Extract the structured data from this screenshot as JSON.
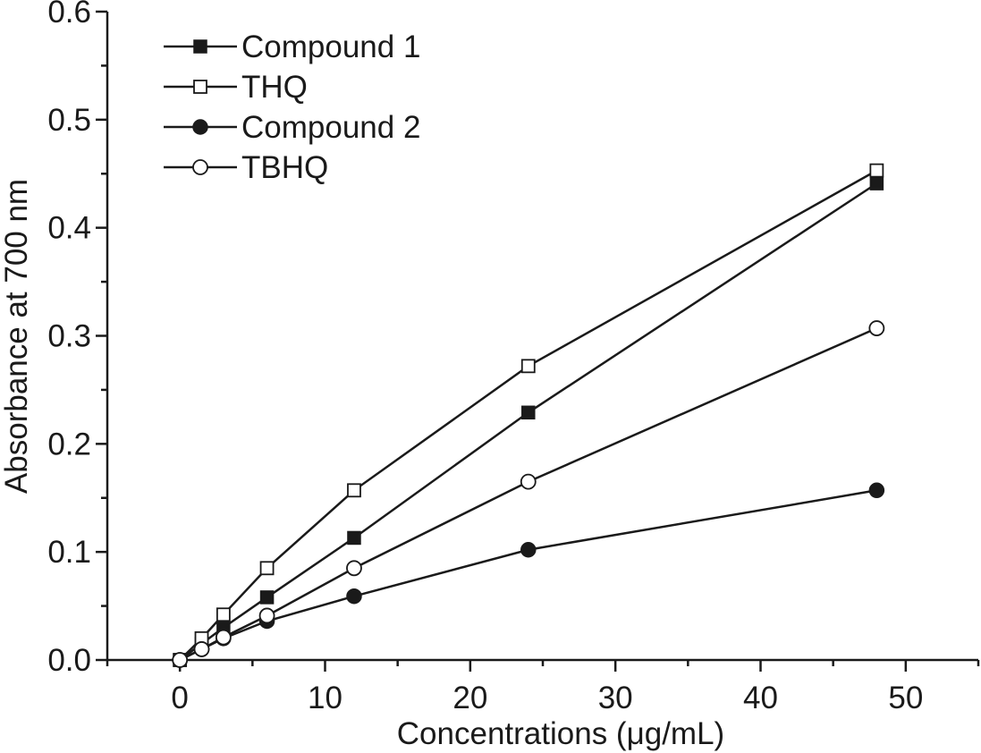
{
  "chart_data": {
    "type": "line",
    "title": "",
    "xlabel": "Concentrations (μg/mL)",
    "ylabel": "Absorbance at 700 nm",
    "xlim": [
      -5,
      55
    ],
    "ylim": [
      0.0,
      0.6
    ],
    "xticks": [
      0,
      10,
      20,
      30,
      40,
      50
    ],
    "xtick_labels": [
      "0",
      "10",
      "20",
      "30",
      "40",
      "50"
    ],
    "yticks": [
      0.0,
      0.1,
      0.2,
      0.3,
      0.4,
      0.5,
      0.6
    ],
    "ytick_labels": [
      "0.0",
      "0.1",
      "0.2",
      "0.3",
      "0.4",
      "0.5",
      "0.6"
    ],
    "grid": false,
    "legend_position": "top-left",
    "x": [
      0,
      1.5,
      3,
      6,
      12,
      24,
      48
    ],
    "series": [
      {
        "name": "Compound 1",
        "marker": "filled-square",
        "values": [
          0.0,
          0.015,
          0.03,
          0.058,
          0.113,
          0.229,
          0.441
        ]
      },
      {
        "name": "THQ",
        "marker": "open-square",
        "values": [
          0.0,
          0.02,
          0.042,
          0.085,
          0.157,
          0.272,
          0.453
        ]
      },
      {
        "name": "Compound 2",
        "marker": "filled-circle",
        "values": [
          0.0,
          0.01,
          0.02,
          0.036,
          0.059,
          0.102,
          0.157
        ]
      },
      {
        "name": "TBHQ",
        "marker": "open-circle",
        "values": [
          0.0,
          0.01,
          0.021,
          0.041,
          0.085,
          0.165,
          0.307
        ]
      }
    ],
    "colors": {
      "ink": "#1a1a1a",
      "background": "#ffffff"
    }
  }
}
